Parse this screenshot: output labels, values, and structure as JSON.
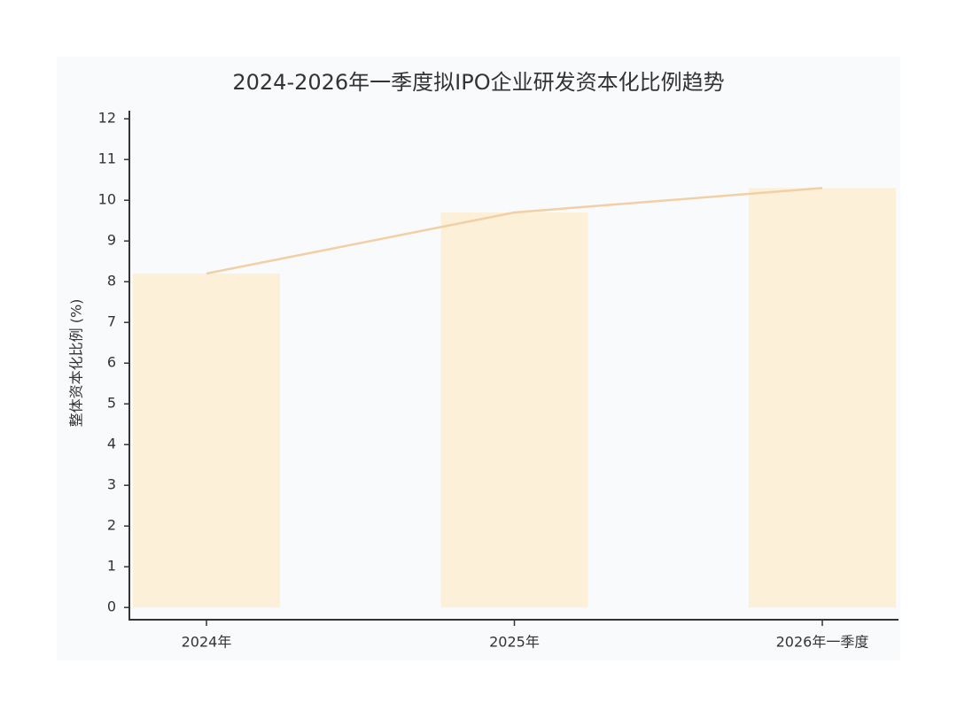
{
  "chart_data": {
    "type": "bar",
    "title": "2024-2026年一季度拟IPO企业研发资本化比例趋势",
    "y_label": "整体资本化比例 (%)",
    "categories": [
      "2024年",
      "2025年",
      "2026年一季度"
    ],
    "values": [
      8.2,
      9.7,
      10.3
    ],
    "color": "#fdf0d9",
    "line_color": "#f3cfa5",
    "line_overlay": true,
    "ylim": [
      -0.3,
      12.2
    ],
    "yticks": [
      0,
      1,
      2,
      3,
      4,
      5,
      6,
      7,
      8,
      9,
      10,
      11,
      12
    ],
    "grid": false
  }
}
